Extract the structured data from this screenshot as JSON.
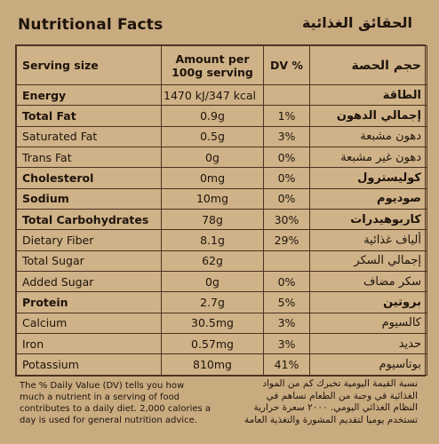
{
  "title_en": "Nutritional Facts",
  "title_ar": "الحقائق الغذائية",
  "headers": {
    "serving_size": "Serving size",
    "amount_line1": "Amount per",
    "amount_line2": "100g serving",
    "dv": "DV %",
    "serving_size_ar": "حجم الحصة"
  },
  "rows": [
    {
      "name": "Energy",
      "amount": "1470 kJ/347 kcal",
      "dv": "",
      "name_ar": "الطاقة",
      "bold": true
    },
    {
      "name": "Total Fat",
      "amount": "0.9g",
      "dv": "1%",
      "name_ar": "إجمالي الدهون",
      "bold": true
    },
    {
      "name": "Saturated Fat",
      "amount": "0.5g",
      "dv": "3%",
      "name_ar": "دهون مشبعة",
      "bold": false
    },
    {
      "name": "Trans Fat",
      "amount": "0g",
      "dv": "0%",
      "name_ar": "دهون غير مشبعة",
      "bold": false
    },
    {
      "name": "Cholesterol",
      "amount": "0mg",
      "dv": "0%",
      "name_ar": "كوليسترول",
      "bold": true
    },
    {
      "name": "Sodium",
      "amount": "10mg",
      "dv": "0%",
      "name_ar": "صوديوم",
      "bold": true
    },
    {
      "name": "Total Carbohydrates",
      "amount": "78g",
      "dv": "30%",
      "name_ar": "كاربوهيدرات",
      "bold": true
    },
    {
      "name": "Dietary Fiber",
      "amount": "8.1g",
      "dv": "29%",
      "name_ar": "ألياف غذائية",
      "bold": false
    },
    {
      "name": "Total Sugar",
      "amount": "62g",
      "dv": "",
      "name_ar": "إجمالي السكر",
      "bold": false
    },
    {
      "name": "Added Sugar",
      "amount": "0g",
      "dv": "0%",
      "name_ar": "سكر مضاف",
      "bold": false
    },
    {
      "name": "Protein",
      "amount": "2.7g",
      "dv": "5%",
      "name_ar": "بروتين",
      "bold": true
    },
    {
      "name": "Calcium",
      "amount": "30.5mg",
      "dv": "3%",
      "name_ar": "كالسيوم",
      "bold": false
    },
    {
      "name": "Iron",
      "amount": "0.57mg",
      "dv": "3%",
      "name_ar": "حديد",
      "bold": false
    },
    {
      "name": "Potassium",
      "amount": "810mg",
      "dv": "41%",
      "name_ar": "بوتاسيوم",
      "bold": false
    }
  ],
  "footnote_en": [
    "The % Daily Value (DV) tells you how",
    "much a nutrient in a serving of food",
    "contributes to a daily diet. 2,000 calories a",
    "day is used for general nutrition advice."
  ],
  "footnote_ar": [
    "نسبة القيمة اليومية تخبرك كم من المواد",
    "الغذائية في وجبة من الطعام تساهم في",
    "النظام الغذائي اليومي. ٢٠٠٠ سعرة حرارية",
    "تستخدم يوميا لتقديم المشورة والتغذية العامة"
  ]
}
